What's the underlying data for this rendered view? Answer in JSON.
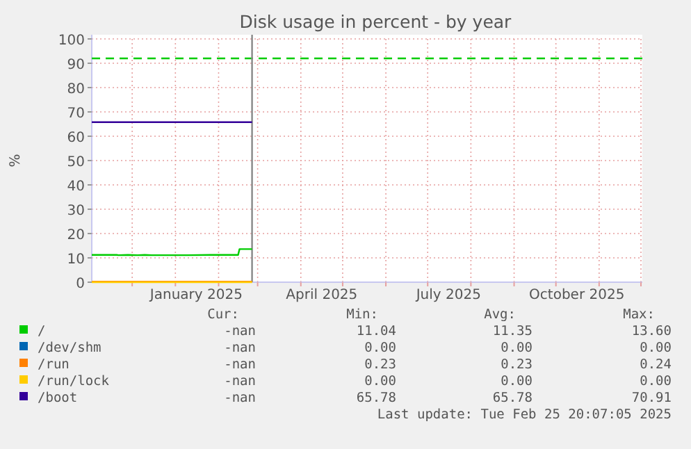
{
  "chart_data": {
    "type": "line",
    "title": "Disk usage in percent - by year",
    "ylabel": "%",
    "xlim": [
      "2024-11-02",
      "2025-12-02"
    ],
    "xticks": [
      {
        "value": "2024-12-01",
        "label": null
      },
      {
        "value": "2025-01-01",
        "label": null
      },
      {
        "value": "2025-01-16",
        "label": "January 2025"
      },
      {
        "value": "2025-02-01",
        "label": null
      },
      {
        "value": "2025-03-01",
        "label": null
      },
      {
        "value": "2025-04-01",
        "label": null
      },
      {
        "value": "2025-04-16",
        "label": "April 2025"
      },
      {
        "value": "2025-05-01",
        "label": null
      },
      {
        "value": "2025-06-01",
        "label": null
      },
      {
        "value": "2025-07-01",
        "label": null
      },
      {
        "value": "2025-07-16",
        "label": "July 2025"
      },
      {
        "value": "2025-08-01",
        "label": null
      },
      {
        "value": "2025-09-01",
        "label": null
      },
      {
        "value": "2025-10-01",
        "label": null
      },
      {
        "value": "2025-10-16",
        "label": "October 2025"
      },
      {
        "value": "2025-11-01",
        "label": null
      },
      {
        "value": "2025-12-01",
        "label": null
      }
    ],
    "ylim": [
      0,
      100
    ],
    "yticks": [
      0,
      10,
      20,
      30,
      40,
      50,
      60,
      70,
      80,
      90,
      100
    ],
    "grid": true,
    "legend": "bottom",
    "marker": "none",
    "line_style": "solid",
    "series": [
      {
        "name": "/",
        "color": "#00cc00",
        "x": [
          "2024-11-02",
          "2024-11-20",
          "2024-11-21",
          "2024-11-28",
          "2024-12-05",
          "2024-12-10",
          "2024-12-15",
          "2024-12-25",
          "2025-01-10",
          "2025-01-26",
          "2025-02-15",
          "2025-02-16",
          "2025-02-25"
        ],
        "values": [
          11.2,
          11.2,
          11.1,
          11.2,
          11.1,
          11.2,
          11.1,
          11.1,
          11.1,
          11.2,
          11.2,
          13.6,
          13.6
        ]
      },
      {
        "name": "/dev/shm",
        "color": "#0066b3",
        "values": [
          null,
          null
        ]
      },
      {
        "name": "/run",
        "color": "#ff8000",
        "x": [
          "2024-11-02",
          "2025-02-25"
        ],
        "values": [
          0.2,
          0.2
        ]
      },
      {
        "name": "/run/lock",
        "color": "#ffcc00",
        "x": [
          "2024-11-02",
          "2025-02-25"
        ],
        "values": [
          0,
          0
        ]
      },
      {
        "name": "/boot",
        "color": "#330099",
        "x": [
          "2024-11-02",
          "2025-02-25"
        ],
        "values": [
          65.8,
          65.8
        ]
      }
    ],
    "ref_lines": [
      {
        "axis": "y",
        "value": 92,
        "color": "#00cc00",
        "line_style": "dashed"
      },
      {
        "axis": "x",
        "value": "2025-02-25",
        "color": "#888888",
        "line_style": "solid"
      }
    ],
    "annotations": [
      "Cur:",
      "Min:",
      "Avg:",
      "Max:",
      "-nan",
      "11.04",
      "11.35",
      "13.60",
      "-nan",
      "0.00",
      "0.00",
      "0.00",
      "-nan",
      "0.23",
      "0.23",
      "0.24",
      "-nan",
      "0.00",
      "0.00",
      "0.00",
      "-nan",
      "65.78",
      "65.78",
      "70.91",
      "Last update: Tue Feb 25 20:07:05 2025"
    ]
  }
}
